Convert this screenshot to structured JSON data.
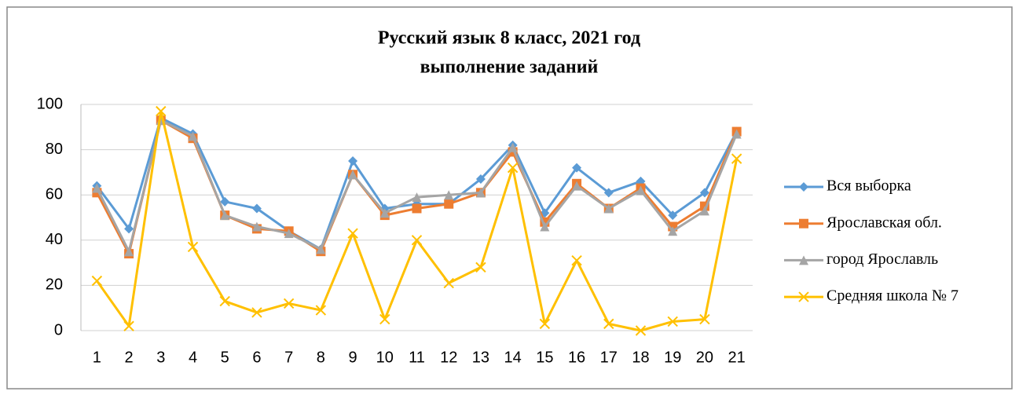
{
  "chart_data": {
    "type": "line",
    "title": "Русский язык 8 класс, 2021 год",
    "subtitle": "выполнение заданий",
    "categories": [
      "1",
      "2",
      "3",
      "4",
      "5",
      "6",
      "7",
      "8",
      "9",
      "10",
      "11",
      "12",
      "13",
      "14",
      "15",
      "16",
      "17",
      "18",
      "19",
      "20",
      "21"
    ],
    "series": [
      {
        "name": "Вся выборка",
        "color": "#5b9bd5",
        "marker": "diamond",
        "values": [
          64,
          45,
          94,
          87,
          57,
          54,
          44,
          36,
          75,
          54,
          56,
          56,
          67,
          82,
          52,
          72,
          61,
          66,
          51,
          61,
          88
        ]
      },
      {
        "name": "Ярославская обл.",
        "color": "#ed7d31",
        "marker": "square",
        "values": [
          61,
          34,
          93,
          85,
          51,
          45,
          44,
          35,
          69,
          51,
          54,
          56,
          61,
          79,
          48,
          65,
          54,
          63,
          46,
          55,
          88
        ]
      },
      {
        "name": "город Ярославль",
        "color": "#a5a5a5",
        "marker": "triangle",
        "values": [
          63,
          35,
          93,
          86,
          51,
          46,
          43,
          36,
          69,
          52,
          59,
          60,
          61,
          81,
          46,
          64,
          54,
          62,
          44,
          53,
          87
        ]
      },
      {
        "name": "Средняя школа № 7",
        "color": "#ffc000",
        "marker": "x",
        "values": [
          22,
          2,
          97,
          37,
          13,
          8,
          12,
          9,
          43,
          5,
          40,
          21,
          28,
          72,
          3,
          31,
          3,
          0,
          4,
          5,
          76
        ]
      }
    ],
    "ylim": [
      0,
      100
    ],
    "yticks": [
      0,
      20,
      40,
      60,
      80,
      100
    ],
    "grid": true,
    "legend": "right"
  }
}
